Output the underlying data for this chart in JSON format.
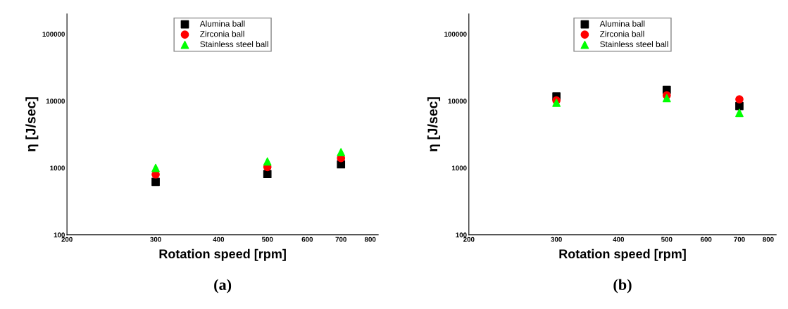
{
  "chart_data": [
    {
      "type": "scatter",
      "xlabel": "Rotation speed [rpm]",
      "ylabel": "η [J/sec]",
      "annotations": [
        "(a)"
      ],
      "log": "xy",
      "xlim": [
        200,
        830
      ],
      "xticks": [
        200,
        300,
        400,
        500,
        600,
        700,
        800
      ],
      "ylim": [
        100,
        200000
      ],
      "yticks": [
        100,
        1000,
        10000,
        100000
      ],
      "grid": false,
      "legend": "top",
      "x": [
        300,
        500,
        700
      ],
      "series": [
        {
          "name": "Alumina ball",
          "color": "#000000",
          "marker": "square",
          "values": [
            620,
            810,
            1130
          ]
        },
        {
          "name": "Zirconia ball",
          "color": "#ff0000",
          "marker": "circle",
          "values": [
            800,
            1030,
            1400
          ]
        },
        {
          "name": "Stainless steel ball",
          "color": "#00ff00",
          "marker": "triangle",
          "values": [
            1000,
            1250,
            1720
          ]
        }
      ]
    },
    {
      "type": "scatter",
      "xlabel": "Rotation speed [rpm]",
      "ylabel": "η [J/sec]",
      "annotations": [
        "(b)"
      ],
      "log": "xy",
      "xlim": [
        200,
        830
      ],
      "xticks": [
        200,
        300,
        400,
        500,
        600,
        700,
        800
      ],
      "ylim": [
        100,
        200000
      ],
      "yticks": [
        100,
        1000,
        10000,
        100000
      ],
      "grid": false,
      "legend": "top",
      "x": [
        300,
        500,
        700
      ],
      "series": [
        {
          "name": "Alumina ball",
          "color": "#000000",
          "marker": "square",
          "values": [
            11700,
            14700,
            8400
          ]
        },
        {
          "name": "Zirconia ball",
          "color": "#ff0000",
          "marker": "circle",
          "values": [
            10200,
            12150,
            10600
          ]
        },
        {
          "name": "Stainless steel ball",
          "color": "#00ff00",
          "marker": "triangle",
          "values": [
            9400,
            11000,
            6650
          ]
        }
      ]
    }
  ]
}
